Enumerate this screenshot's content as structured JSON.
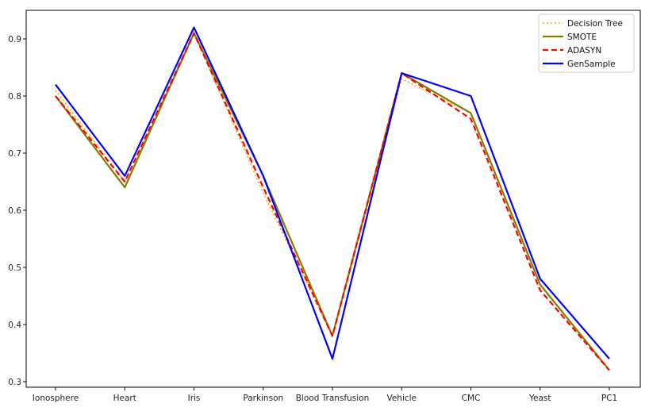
{
  "chart_data": {
    "type": "line",
    "title": "",
    "xlabel": "",
    "ylabel": "",
    "categories": [
      "Ionosphere",
      "Heart",
      "Iris",
      "Parkinson",
      "Blood Transfusion",
      "Vehicle",
      "CMC",
      "Yeast",
      "PC1"
    ],
    "ylim": [
      0.29,
      0.95
    ],
    "yticks": [
      "0.3",
      "0.4",
      "0.5",
      "0.6",
      "0.7",
      "0.8",
      "0.9"
    ],
    "grid": false,
    "legend_position": "top-right",
    "series": [
      {
        "name": "Decision Tree",
        "color": "#ffa500",
        "style": "dotted",
        "values": [
          0.81,
          0.65,
          0.91,
          0.63,
          0.38,
          0.83,
          0.77,
          0.47,
          0.32
        ]
      },
      {
        "name": "SMOTE",
        "color": "#808000",
        "style": "solid",
        "values": [
          0.8,
          0.64,
          0.91,
          0.66,
          0.38,
          0.84,
          0.77,
          0.47,
          0.32
        ]
      },
      {
        "name": "ADASYN",
        "color": "#ff0000",
        "style": "dashed",
        "values": [
          0.8,
          0.65,
          0.91,
          0.64,
          0.38,
          0.84,
          0.76,
          0.46,
          0.32
        ]
      },
      {
        "name": "GenSample",
        "color": "#0000ff",
        "style": "solid",
        "values": [
          0.82,
          0.66,
          0.92,
          0.66,
          0.34,
          0.84,
          0.8,
          0.48,
          0.34
        ]
      }
    ]
  }
}
